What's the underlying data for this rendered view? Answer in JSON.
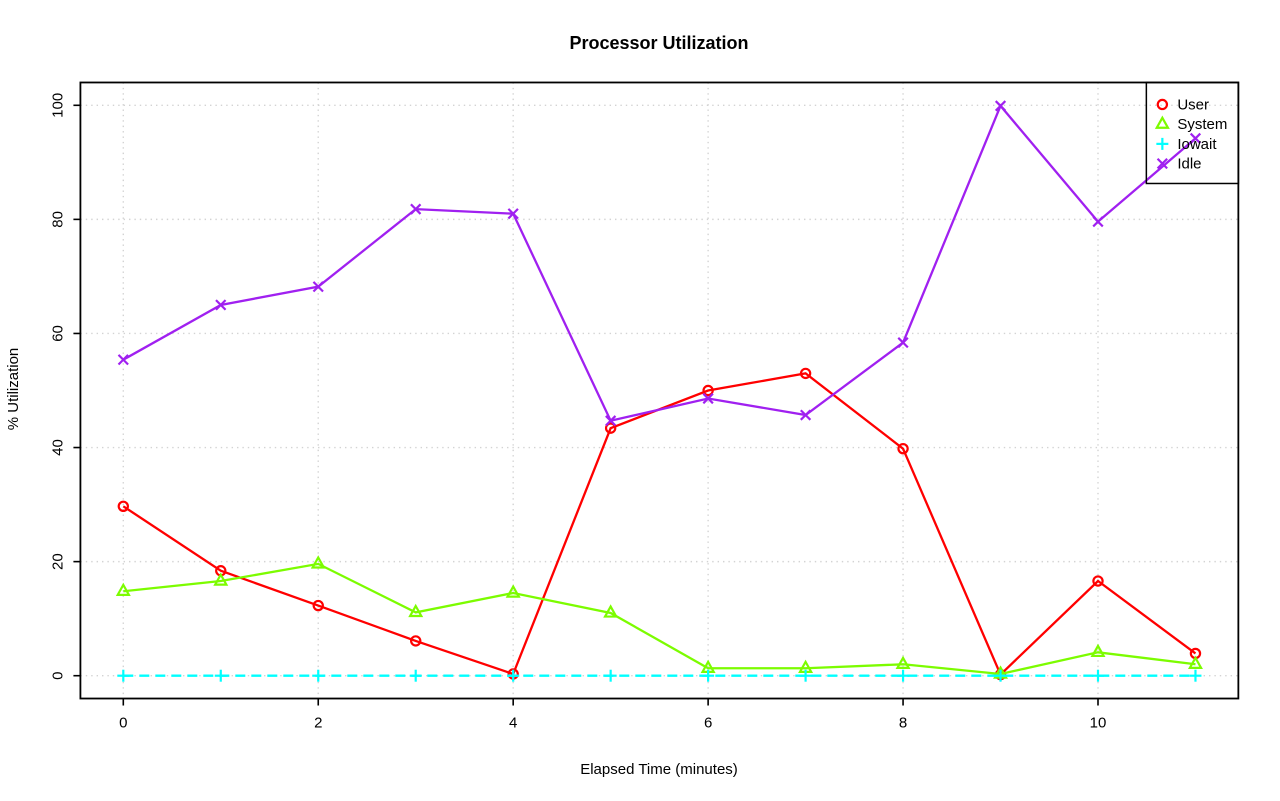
{
  "title": "Processor Utilization",
  "chart_data": {
    "type": "line",
    "title": "Processor Utilization",
    "xlabel": "Elapsed Time (minutes)",
    "ylabel": "% Utilization",
    "x": [
      0,
      1,
      2,
      3,
      4,
      5,
      6,
      7,
      8,
      9,
      10,
      11
    ],
    "xticks": [
      0,
      2,
      4,
      6,
      8,
      10
    ],
    "yticks": [
      0,
      20,
      40,
      60,
      80,
      100
    ],
    "xlim": [
      -0.44,
      11.44
    ],
    "ylim": [
      -4,
      104
    ],
    "grid": true,
    "grid_style": "dotted",
    "legend_position": "topright",
    "series": [
      {
        "name": "User",
        "color": "#FF0000",
        "marker": "circle",
        "line": "solid",
        "values": [
          29.7,
          18.4,
          12.3,
          6.1,
          0.3,
          43.4,
          50.0,
          53.0,
          39.8,
          0.2,
          16.6,
          3.9
        ]
      },
      {
        "name": "System",
        "color": "#7CFC00",
        "marker": "triangle",
        "line": "solid",
        "values": [
          14.8,
          16.6,
          19.6,
          11.1,
          14.5,
          11.0,
          1.3,
          1.3,
          2.0,
          0.3,
          4.1,
          2.0
        ]
      },
      {
        "name": "Iowait",
        "color": "#00FFFF",
        "marker": "plus",
        "line": "dashed",
        "values": [
          0,
          0,
          0,
          0,
          0,
          0,
          0,
          0,
          0,
          0,
          0,
          0
        ]
      },
      {
        "name": "Idle",
        "color": "#A020F0",
        "marker": "x",
        "line": "solid",
        "values": [
          55.4,
          65.0,
          68.2,
          81.8,
          81.0,
          44.7,
          48.6,
          45.7,
          58.4,
          99.9,
          79.6,
          94.2
        ]
      }
    ]
  },
  "colors": {
    "background": "#FFFFFF",
    "grid": "#D3D3D3",
    "axis": "#000000",
    "legend_border": "#000000"
  }
}
